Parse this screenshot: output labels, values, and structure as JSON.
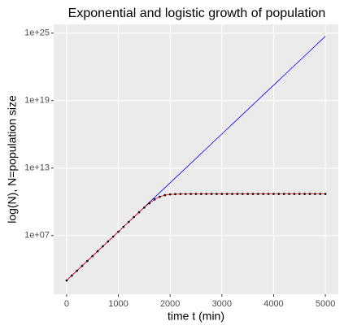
{
  "chart_data": {
    "type": "line",
    "title": "Exponential and logistic growth of population",
    "xlabel": "time t (min)",
    "ylabel": "log(N), N=population size",
    "x": [
      0,
      100,
      200,
      300,
      400,
      500,
      600,
      700,
      800,
      900,
      1000,
      1100,
      1200,
      1300,
      1400,
      1500,
      1600,
      1700,
      1800,
      1900,
      2000,
      2100,
      2200,
      2300,
      2400,
      2500,
      2600,
      2700,
      2800,
      2900,
      3000,
      3100,
      3200,
      3300,
      3400,
      3500,
      3600,
      3700,
      3800,
      3900,
      4000,
      4100,
      4200,
      4300,
      4400,
      4500,
      4600,
      4700,
      4800,
      4900,
      5000
    ],
    "series": [
      {
        "color": "#0000ff",
        "points": false,
        "values": [
          1000.0,
          2718.0,
          7389.0,
          20090.0,
          54600.0,
          148400.0,
          403400.0,
          1097000.0,
          2981000.0,
          8103000.0,
          22026000.0,
          59874000.0,
          162755000.0,
          442413000.0,
          1202600000.0,
          3269000000.0,
          8886000000.0,
          24155000000.0,
          65660000000.0,
          178480000000.0,
          485170000000.0,
          1318800000000.0,
          3584900000000.0,
          9744800000000.0,
          26489000000000.0,
          72005000000000.0,
          195730000000000.0,
          532050000000000.0,
          1446300000000000.0,
          3931300000000000.0,
          1.0686e+16,
          2.9049e+16,
          7.8963e+16,
          2.1464e+17,
          5.8346e+17,
          1.586e+18,
          4.3112e+18,
          1.1719e+19,
          3.1856e+19,
          8.6593e+19,
          2.3539e+20,
          6.3984e+20,
          1.7393e+21,
          4.728e+21,
          1.2852e+22,
          3.4934e+22,
          9.4961e+22,
          2.5813e+23,
          7.0167e+23,
          1.9073e+24,
          5.1847e+24
        ]
      },
      {
        "color": "#ff0000",
        "points": true,
        "point_color": "#000000",
        "values": [
          1000.0,
          2718.0,
          7389.0,
          20090.0,
          54600.0,
          148400.0,
          403400.0,
          1097000.0,
          2981000.0,
          8103000.0,
          22026000.0,
          59874000.0,
          162755000.0,
          438500000.0,
          1174400000.0,
          3068000000.0,
          7545000000.0,
          16287000000.0,
          28385000000.0,
          39060000000.0,
          45330000000.0,
          48170000000.0,
          49310000000.0,
          49740000000.0,
          49906000000.0,
          49965000000.0,
          49987000000.0,
          49995000000.0,
          50000000000.0,
          50000000000.0,
          50000000000.0,
          50000000000.0,
          50000000000.0,
          50000000000.0,
          50000000000.0,
          50000000000.0,
          50000000000.0,
          50000000000.0,
          50000000000.0,
          50000000000.0,
          50000000000.0,
          50000000000.0,
          50000000000.0,
          50000000000.0,
          50000000000.0,
          50000000000.0,
          50000000000.0,
          50000000000.0,
          50000000000.0,
          50000000000.0,
          50000000000.0
        ]
      }
    ],
    "xlim": [
      -250,
      5250
    ],
    "xticks": [
      0,
      1000,
      2000,
      3000,
      4000,
      5000
    ],
    "ylim": [
      60,
      6e+25
    ],
    "ylog": true,
    "yticks": [
      {
        "value": 10000000.0,
        "label": "1e+07"
      },
      {
        "value": 10000000000000.0,
        "label": "1e+13"
      },
      {
        "value": 1e+19,
        "label": "1e+19"
      },
      {
        "value": 1e+25,
        "label": "1e+25"
      }
    ],
    "grid": true
  }
}
